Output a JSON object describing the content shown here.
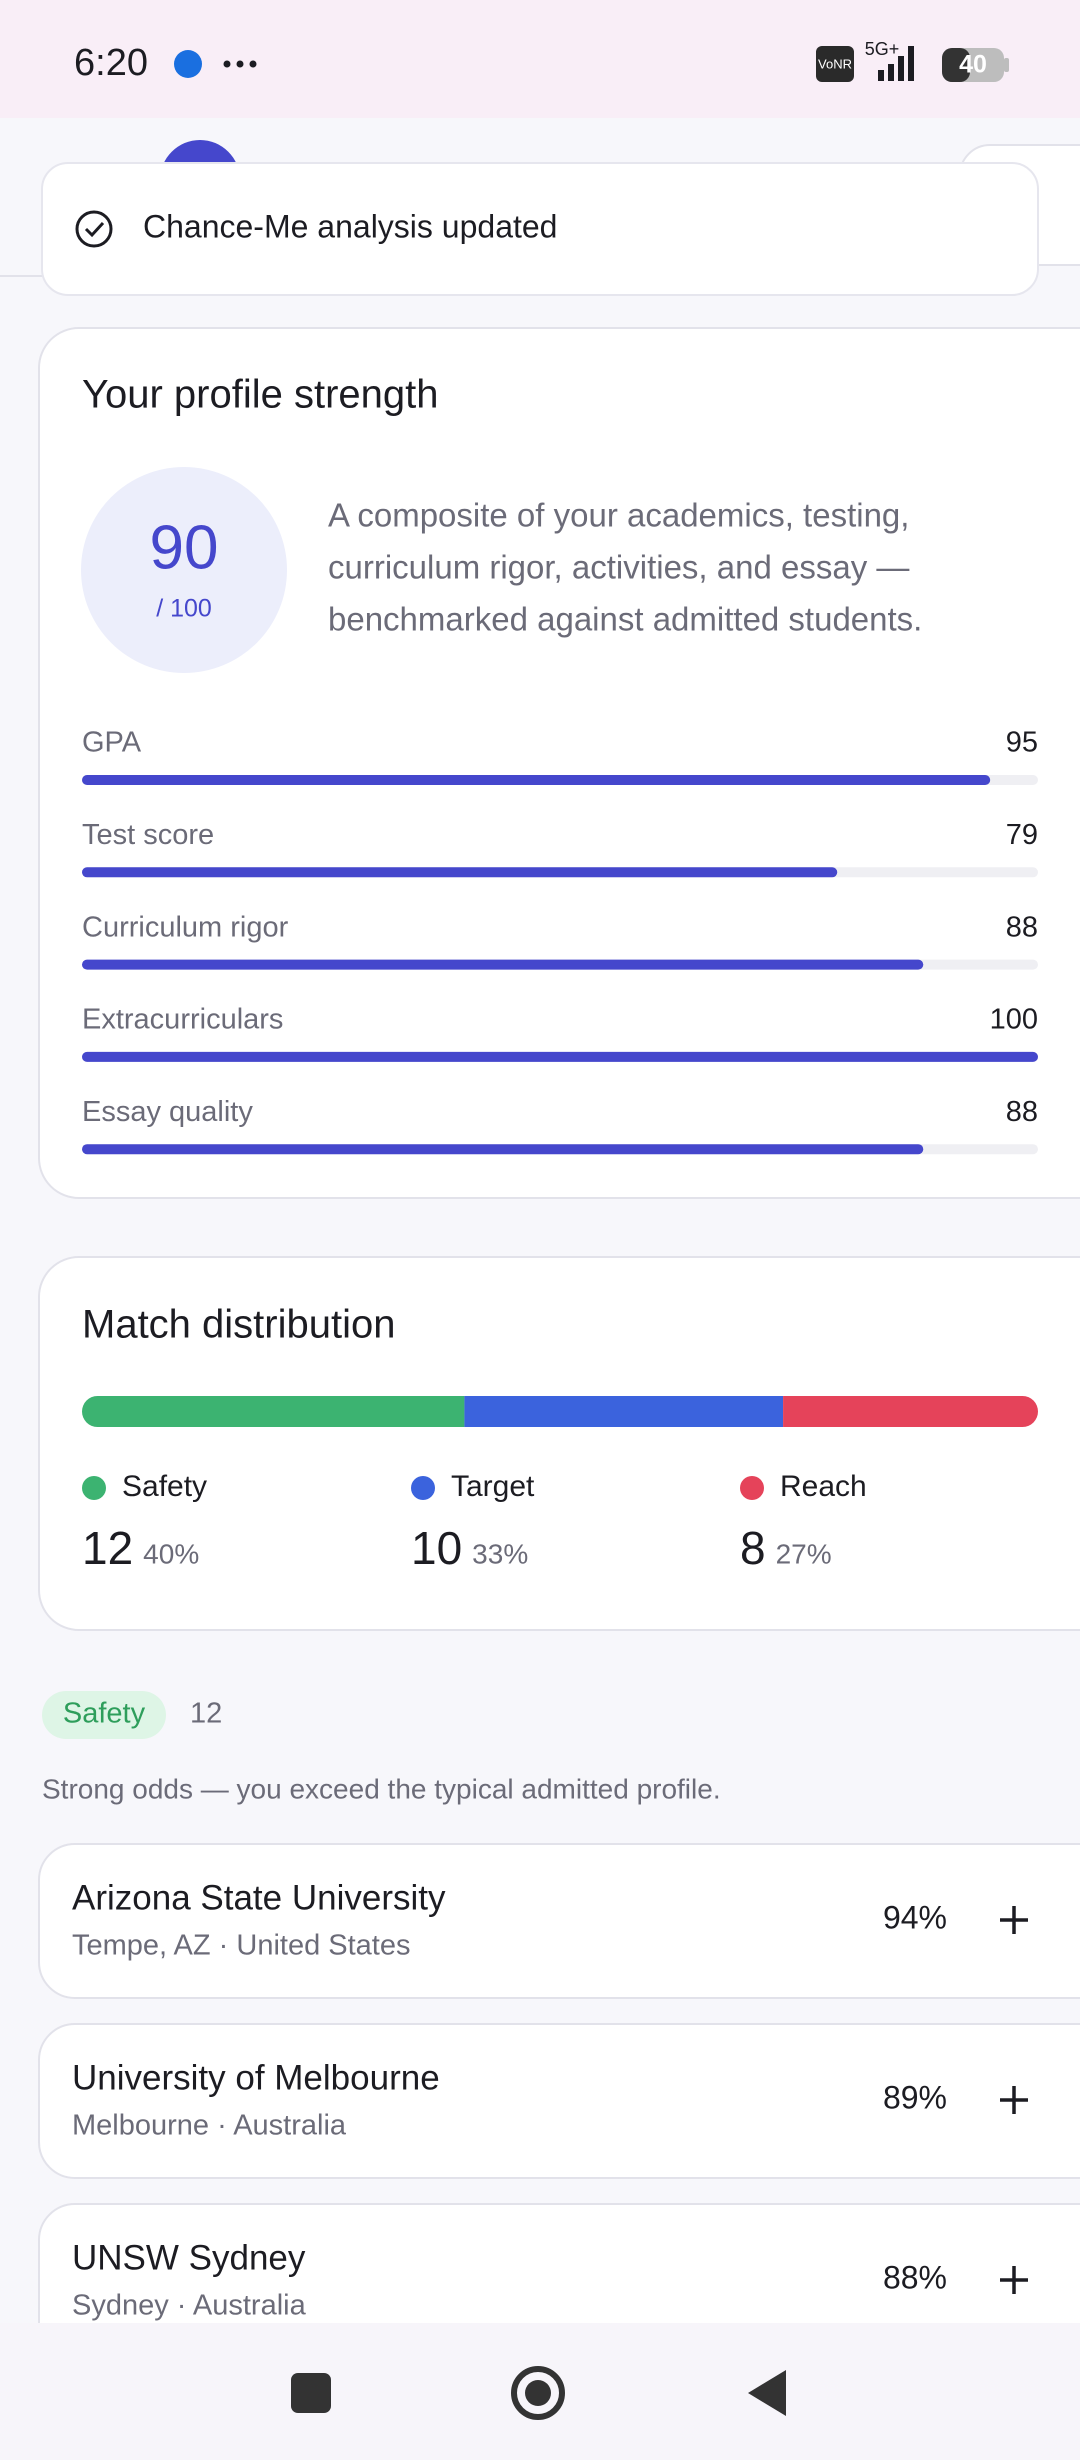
{
  "status_bar": {
    "time": "6:20",
    "network_badge": "VoNR",
    "network": "5G+",
    "battery": "40"
  },
  "toast": {
    "text": "Chance-Me analysis updated"
  },
  "profile": {
    "title": "Your profile strength",
    "score": 90,
    "score_max": {
      "value": 100,
      "label": "/ 100"
    },
    "description": [
      "A composite of your academics, testing,",
      "curriculum rigor, activities, and essay —",
      "benchmarked against admitted students."
    ],
    "metrics": [
      {
        "label": "GPA",
        "value": 95
      },
      {
        "label": "Test score",
        "value": 79
      },
      {
        "label": "Curriculum rigor",
        "value": 88
      },
      {
        "label": "Extracurriculars",
        "value": 100
      },
      {
        "label": "Essay quality",
        "value": 88
      }
    ]
  },
  "match": {
    "title": "Match distribution",
    "groups": [
      {
        "name": "Safety",
        "count": 12,
        "percent": "40%",
        "color": "#3cb371"
      },
      {
        "name": "Target",
        "count": 10,
        "percent": "33%",
        "color": "#3b63dd"
      },
      {
        "name": "Reach",
        "count": 8,
        "percent": "27%",
        "color": "#e5435a"
      }
    ]
  },
  "section": {
    "chip": "Safety",
    "count": 12,
    "description": "Strong odds — you exceed the typical admitted profile."
  },
  "schools": [
    {
      "name": "Arizona State University",
      "location": "Tempe, AZ · United States",
      "chance": "94%"
    },
    {
      "name": "University of Melbourne",
      "location": "Melbourne · Australia",
      "chance": "89%"
    },
    {
      "name": "UNSW Sydney",
      "location": "Sydney · Australia",
      "chance": "88%"
    }
  ]
}
